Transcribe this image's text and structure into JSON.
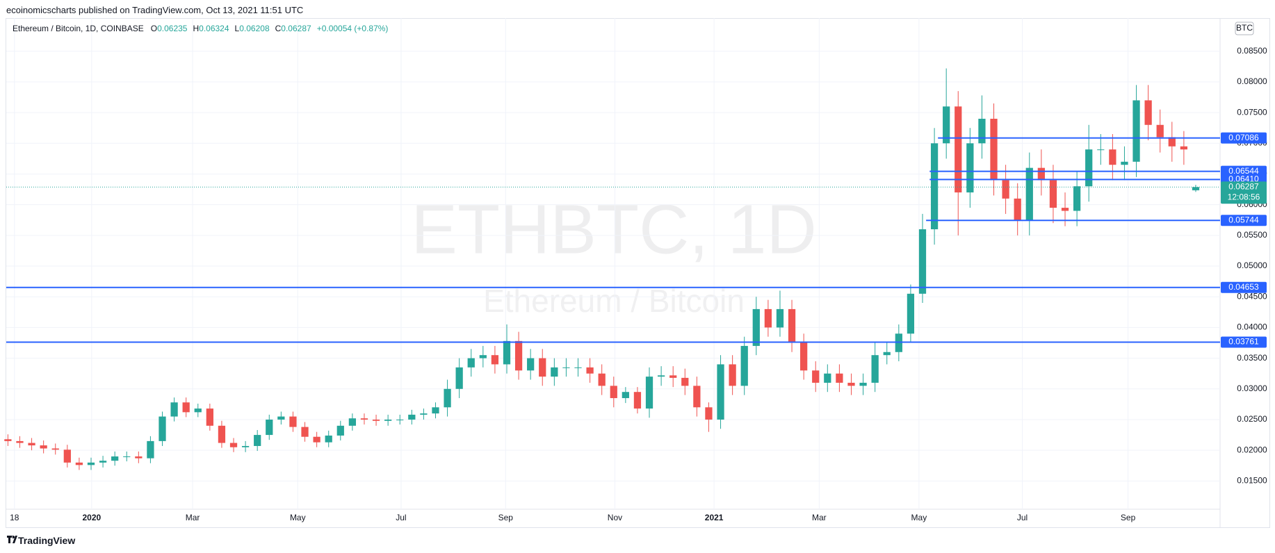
{
  "chart_data": {
    "type": "candlestick",
    "published": "ecoinomicscharts published on TradingView.com, Oct 13, 2021 11:51 UTC",
    "symbol": "Ethereum / Bitcoin, 1D, COINBASE",
    "ohlc_header": [
      {
        "key": "O",
        "value": "0.06235"
      },
      {
        "key": "H",
        "value": "0.06324"
      },
      {
        "key": "L",
        "value": "0.06208"
      },
      {
        "key": "C",
        "value": "0.06287"
      }
    ],
    "change": "+0.00054 (+0.87%)",
    "watermark": "ETHBTC, 1D",
    "watermark_sub": "Ethereum / Bitcoin",
    "currency": "BTC",
    "footer": "TradingView",
    "up_color": "#26a69a",
    "down_color": "#ef5350",
    "line_color": "#2962ff",
    "grid": true,
    "open": [
      0.0218,
      0.0215,
      0.0212,
      0.0208,
      0.0203,
      0.0201,
      0.018,
      0.0176,
      0.018,
      0.0183,
      0.019,
      0.019,
      0.0187,
      0.0215,
      0.0255,
      0.0278,
      0.0262,
      0.0268,
      0.024,
      0.0212,
      0.0205,
      0.0207,
      0.0225,
      0.025,
      0.0255,
      0.0238,
      0.0222,
      0.0213,
      0.0224,
      0.024,
      0.0252,
      0.025,
      0.0248,
      0.025,
      0.025,
      0.0258,
      0.026,
      0.027,
      0.03,
      0.0335,
      0.035,
      0.0355,
      0.034,
      0.0378,
      0.033,
      0.035,
      0.032,
      0.0335,
      0.0335,
      0.0335,
      0.0325,
      0.0305,
      0.0285,
      0.0295,
      0.0268,
      0.032,
      0.0322,
      0.0318,
      0.0305,
      0.027,
      0.025,
      0.034,
      0.0305,
      0.037,
      0.043,
      0.04,
      0.043,
      0.0375,
      0.033,
      0.031,
      0.0325,
      0.031,
      0.0305,
      0.031,
      0.0355,
      0.036,
      0.039,
      0.0455,
      0.056,
      0.07,
      0.076,
      0.062,
      0.07,
      0.074,
      0.064,
      0.061,
      0.0575,
      0.066,
      0.064,
      0.0595,
      0.059,
      0.063,
      0.069,
      0.069,
      0.0665,
      0.067,
      0.077,
      0.073,
      0.071,
      0.0695,
      0.06235
    ],
    "high": [
      0.0226,
      0.0223,
      0.022,
      0.0216,
      0.0211,
      0.0209,
      0.0188,
      0.0188,
      0.0191,
      0.0198,
      0.0198,
      0.0198,
      0.0223,
      0.0263,
      0.0286,
      0.0286,
      0.0276,
      0.0276,
      0.0248,
      0.022,
      0.0215,
      0.0233,
      0.0258,
      0.0263,
      0.0263,
      0.0246,
      0.023,
      0.0232,
      0.0248,
      0.026,
      0.026,
      0.0258,
      0.0258,
      0.0258,
      0.0266,
      0.0268,
      0.0278,
      0.0315,
      0.035,
      0.0365,
      0.037,
      0.037,
      0.0405,
      0.0393,
      0.0365,
      0.0365,
      0.035,
      0.035,
      0.035,
      0.035,
      0.034,
      0.032,
      0.0303,
      0.0303,
      0.0335,
      0.0337,
      0.0337,
      0.0333,
      0.032,
      0.0278,
      0.0355,
      0.0355,
      0.0385,
      0.045,
      0.0445,
      0.046,
      0.0445,
      0.039,
      0.0345,
      0.034,
      0.034,
      0.0325,
      0.0325,
      0.0375,
      0.0375,
      0.0405,
      0.047,
      0.0585,
      0.0725,
      0.0822,
      0.0785,
      0.0725,
      0.0778,
      0.0765,
      0.0665,
      0.0635,
      0.0685,
      0.069,
      0.0665,
      0.062,
      0.0655,
      0.073,
      0.0715,
      0.0715,
      0.0695,
      0.0795,
      0.0795,
      0.0755,
      0.0735,
      0.072,
      0.06324
    ],
    "low": [
      0.0207,
      0.0204,
      0.02,
      0.0195,
      0.0193,
      0.0172,
      0.0168,
      0.0168,
      0.0172,
      0.0175,
      0.0182,
      0.0179,
      0.0179,
      0.0207,
      0.0247,
      0.0254,
      0.0254,
      0.0232,
      0.0204,
      0.0197,
      0.0197,
      0.0199,
      0.0217,
      0.0242,
      0.023,
      0.0214,
      0.0205,
      0.0205,
      0.0216,
      0.0232,
      0.0242,
      0.024,
      0.024,
      0.0242,
      0.0242,
      0.025,
      0.0252,
      0.0255,
      0.0285,
      0.032,
      0.0335,
      0.0325,
      0.0325,
      0.0315,
      0.0315,
      0.0305,
      0.0305,
      0.032,
      0.032,
      0.031,
      0.029,
      0.027,
      0.0277,
      0.026,
      0.0253,
      0.0305,
      0.0303,
      0.029,
      0.0255,
      0.023,
      0.0235,
      0.029,
      0.029,
      0.0355,
      0.0385,
      0.0385,
      0.036,
      0.0315,
      0.0295,
      0.0295,
      0.0295,
      0.029,
      0.029,
      0.0295,
      0.034,
      0.0345,
      0.0375,
      0.044,
      0.0535,
      0.0675,
      0.055,
      0.0595,
      0.0675,
      0.0615,
      0.0585,
      0.055,
      0.055,
      0.0615,
      0.057,
      0.0565,
      0.0565,
      0.0605,
      0.0665,
      0.064,
      0.064,
      0.0645,
      0.0705,
      0.0685,
      0.067,
      0.0665,
      0.06208
    ],
    "close": [
      0.0215,
      0.0212,
      0.0208,
      0.0203,
      0.0201,
      0.018,
      0.0176,
      0.018,
      0.0183,
      0.019,
      0.019,
      0.0187,
      0.0215,
      0.0255,
      0.0278,
      0.0262,
      0.0268,
      0.024,
      0.0212,
      0.0205,
      0.0207,
      0.0225,
      0.025,
      0.0255,
      0.0238,
      0.0222,
      0.0213,
      0.0224,
      0.024,
      0.0252,
      0.025,
      0.0248,
      0.025,
      0.025,
      0.0258,
      0.026,
      0.027,
      0.03,
      0.0335,
      0.035,
      0.0355,
      0.034,
      0.0378,
      0.033,
      0.035,
      0.032,
      0.0335,
      0.0335,
      0.0335,
      0.0325,
      0.0305,
      0.0285,
      0.0295,
      0.0268,
      0.032,
      0.0322,
      0.0318,
      0.0305,
      0.027,
      0.025,
      0.034,
      0.0305,
      0.037,
      0.043,
      0.04,
      0.043,
      0.0375,
      0.033,
      0.031,
      0.0325,
      0.031,
      0.0305,
      0.031,
      0.0355,
      0.036,
      0.039,
      0.0455,
      0.056,
      0.07,
      0.076,
      0.062,
      0.07,
      0.074,
      0.064,
      0.061,
      0.0575,
      0.066,
      0.064,
      0.0595,
      0.059,
      0.063,
      0.069,
      0.069,
      0.0665,
      0.067,
      0.077,
      0.073,
      0.071,
      0.0695,
      0.069,
      0.06287
    ],
    "xlim": [
      -0.14,
      102.05
    ],
    "xticks": [
      {
        "value": 0.55,
        "label": "18"
      },
      {
        "value": 7.05,
        "label": "2020"
      },
      {
        "value": 15.55,
        "label": "Mar"
      },
      {
        "value": 24.4,
        "label": "May"
      },
      {
        "value": 33.1,
        "label": "Jul"
      },
      {
        "value": 41.9,
        "label": "Sep"
      },
      {
        "value": 51.1,
        "label": "Nov"
      },
      {
        "value": 59.45,
        "label": "2021"
      },
      {
        "value": 68.3,
        "label": "Mar"
      },
      {
        "value": 76.7,
        "label": "May"
      },
      {
        "value": 85.4,
        "label": "Jul"
      },
      {
        "value": 94.3,
        "label": "Sep"
      }
    ],
    "ylim": [
      0.0104,
      0.0904
    ],
    "yticks": [
      {
        "value": 0.015,
        "label": "0.01500"
      },
      {
        "value": 0.02,
        "label": "0.02000"
      },
      {
        "value": 0.025,
        "label": "0.02500"
      },
      {
        "value": 0.03,
        "label": "0.03000"
      },
      {
        "value": 0.035,
        "label": "0.03500"
      },
      {
        "value": 0.04,
        "label": "0.04000"
      },
      {
        "value": 0.045,
        "label": "0.04500"
      },
      {
        "value": 0.05,
        "label": "0.05000"
      },
      {
        "value": 0.055,
        "label": "0.05500"
      },
      {
        "value": 0.06,
        "label": "0.06000"
      },
      {
        "value": 0.065,
        "label": "0.06500"
      },
      {
        "value": 0.07,
        "label": "0.07000"
      },
      {
        "value": 0.075,
        "label": "0.07500"
      },
      {
        "value": 0.08,
        "label": "0.08000"
      },
      {
        "value": 0.085,
        "label": "0.08500"
      }
    ],
    "hlines": [
      {
        "value": 0.07086,
        "label": "0.07086",
        "start": 78.3
      },
      {
        "value": 0.06544,
        "label": "0.06544",
        "start": 77.6
      },
      {
        "value": 0.0641,
        "label": "0.06410",
        "start": 77.6
      },
      {
        "value": 0.05744,
        "label": "0.05744",
        "start": 77.3
      },
      {
        "value": 0.04653,
        "label": "0.04653"
      },
      {
        "value": 0.03761,
        "label": "0.03761"
      }
    ],
    "last_price": {
      "value": 0.06287,
      "label": "0.06287",
      "countdown": "12:08:56"
    }
  }
}
